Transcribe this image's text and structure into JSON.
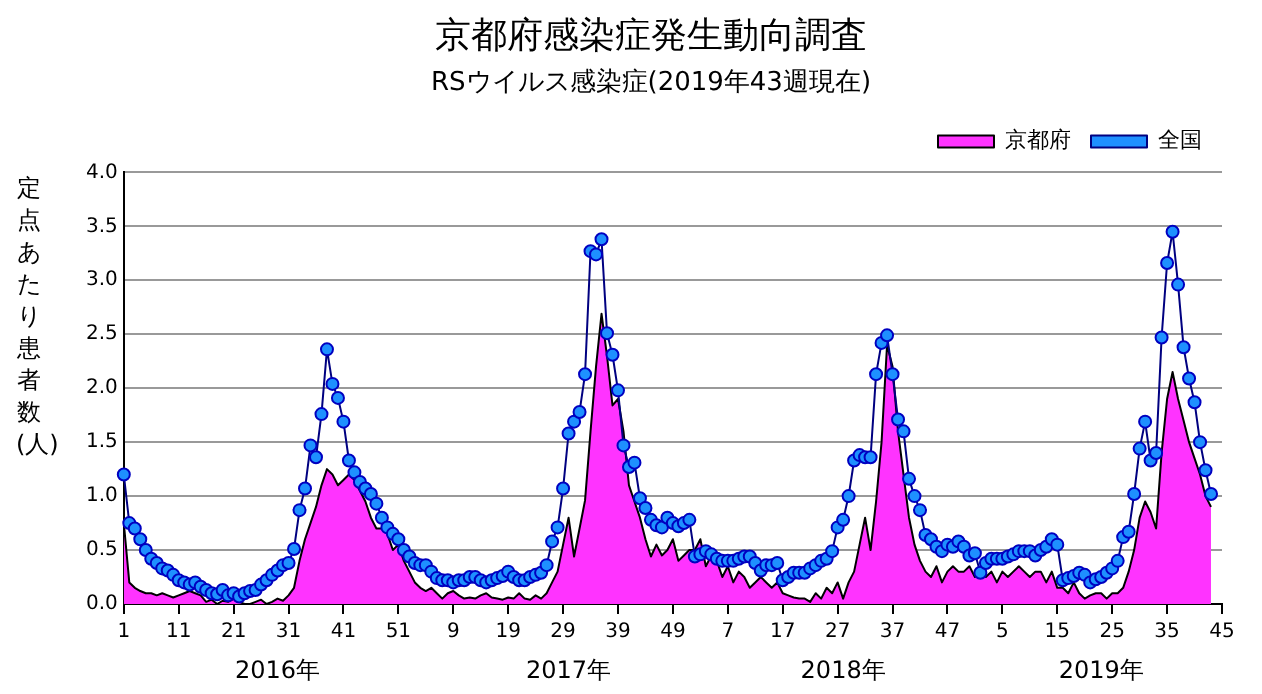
{
  "chart_data": {
    "type": "line",
    "title": "京都府感染症発生動向調査",
    "subtitle": "RSウイルス感染症(2019年43週現在)",
    "ylabel": "定点あたり患者数(人)",
    "categories": [
      "1",
      null,
      null,
      null,
      null,
      null,
      null,
      null,
      null,
      null,
      "11",
      null,
      null,
      null,
      null,
      null,
      null,
      null,
      null,
      null,
      "21",
      null,
      null,
      null,
      null,
      null,
      null,
      null,
      null,
      null,
      "31",
      null,
      null,
      null,
      null,
      null,
      null,
      null,
      null,
      null,
      "41",
      null,
      null,
      null,
      null,
      null,
      null,
      null,
      null,
      null,
      "51",
      null,
      null,
      null,
      null,
      null,
      null,
      null,
      null,
      null,
      "9",
      null,
      null,
      null,
      null,
      null,
      null,
      null,
      null,
      null,
      "19",
      null,
      null,
      null,
      null,
      null,
      null,
      null,
      null,
      null,
      "29",
      null,
      null,
      null,
      null,
      null,
      null,
      null,
      null,
      null,
      "39",
      null,
      null,
      null,
      null,
      null,
      null,
      null,
      null,
      null,
      "49",
      null,
      null,
      null,
      null,
      null,
      null,
      null,
      null,
      null,
      "7",
      null,
      null,
      null,
      null,
      null,
      null,
      null,
      null,
      null,
      "17",
      null,
      null,
      null,
      null,
      null,
      null,
      null,
      null,
      null,
      "27",
      null,
      null,
      null,
      null,
      null,
      null,
      null,
      null,
      null,
      "37",
      null,
      null,
      null,
      null,
      null,
      null,
      null,
      null,
      null,
      "47",
      null,
      null,
      null,
      null,
      null,
      null,
      null,
      null,
      null,
      "5",
      null,
      null,
      null,
      null,
      null,
      null,
      null,
      null,
      null,
      "15",
      null,
      null,
      null,
      null,
      null,
      null,
      null,
      null,
      null,
      "25",
      null,
      null,
      null,
      null,
      null,
      null,
      null,
      null,
      null,
      "35",
      null,
      null,
      null,
      null,
      null,
      null,
      null,
      null,
      null,
      "45"
    ],
    "series": [
      {
        "name": "京都府",
        "type": "area",
        "color": "#ff33ff",
        "values": [
          0.75,
          0.2,
          0.15,
          0.12,
          0.1,
          0.1,
          0.08,
          0.1,
          0.08,
          0.06,
          0.08,
          0.1,
          0.12,
          0.1,
          0.08,
          0.02,
          0.04,
          0.0,
          0.03,
          0.02,
          0.05,
          0.02,
          0.0,
          0.0,
          0.02,
          0.04,
          0.0,
          0.02,
          0.05,
          0.03,
          0.08,
          0.15,
          0.4,
          0.6,
          0.75,
          0.9,
          1.1,
          1.25,
          1.2,
          1.1,
          1.15,
          1.2,
          1.15,
          1.05,
          0.95,
          0.8,
          0.7,
          0.7,
          0.65,
          0.5,
          0.55,
          0.4,
          0.3,
          0.2,
          0.15,
          0.12,
          0.15,
          0.1,
          0.05,
          0.1,
          0.12,
          0.08,
          0.05,
          0.06,
          0.05,
          0.08,
          0.1,
          0.06,
          0.05,
          0.04,
          0.06,
          0.05,
          0.1,
          0.05,
          0.04,
          0.08,
          0.05,
          0.1,
          0.2,
          0.3,
          0.55,
          0.8,
          0.44,
          0.7,
          0.96,
          1.6,
          2.2,
          2.69,
          2.3,
          1.84,
          1.9,
          1.6,
          1.1,
          0.95,
          0.8,
          0.6,
          0.44,
          0.55,
          0.45,
          0.5,
          0.6,
          0.4,
          0.45,
          0.5,
          0.5,
          0.6,
          0.35,
          0.45,
          0.4,
          0.25,
          0.35,
          0.2,
          0.3,
          0.25,
          0.15,
          0.2,
          0.25,
          0.2,
          0.15,
          0.2,
          0.1,
          0.08,
          0.06,
          0.05,
          0.05,
          0.02,
          0.1,
          0.05,
          0.15,
          0.1,
          0.2,
          0.05,
          0.2,
          0.3,
          0.55,
          0.8,
          0.5,
          0.95,
          1.5,
          2.4,
          2.2,
          1.6,
          1.2,
          0.8,
          0.55,
          0.4,
          0.3,
          0.25,
          0.35,
          0.2,
          0.3,
          0.35,
          0.3,
          0.3,
          0.35,
          0.25,
          0.3,
          0.25,
          0.3,
          0.2,
          0.3,
          0.25,
          0.3,
          0.35,
          0.3,
          0.25,
          0.3,
          0.3,
          0.2,
          0.3,
          0.15,
          0.15,
          0.1,
          0.2,
          0.1,
          0.05,
          0.08,
          0.1,
          0.1,
          0.05,
          0.1,
          0.1,
          0.15,
          0.3,
          0.5,
          0.8,
          0.95,
          0.85,
          0.7,
          1.4,
          1.9,
          2.15,
          1.9,
          1.7,
          1.5,
          1.35,
          1.2,
          1.0,
          0.9,
          null,
          null
        ]
      },
      {
        "name": "全国",
        "type": "line",
        "color": "#1e90ff",
        "marker": "circle",
        "values": [
          1.2,
          0.75,
          0.7,
          0.6,
          0.5,
          0.42,
          0.38,
          0.33,
          0.31,
          0.27,
          0.22,
          0.2,
          0.18,
          0.2,
          0.16,
          0.13,
          0.1,
          0.09,
          0.13,
          0.08,
          0.1,
          0.07,
          0.1,
          0.12,
          0.13,
          0.18,
          0.22,
          0.27,
          0.31,
          0.36,
          0.38,
          0.51,
          0.87,
          1.07,
          1.47,
          1.36,
          1.76,
          2.36,
          2.04,
          1.91,
          1.69,
          1.33,
          1.22,
          1.13,
          1.07,
          1.02,
          0.93,
          0.8,
          0.71,
          0.65,
          0.6,
          0.5,
          0.44,
          0.38,
          0.36,
          0.36,
          0.3,
          0.24,
          0.22,
          0.22,
          0.2,
          0.22,
          0.22,
          0.25,
          0.25,
          0.22,
          0.2,
          0.22,
          0.24,
          0.26,
          0.3,
          0.25,
          0.22,
          0.22,
          0.25,
          0.27,
          0.29,
          0.36,
          0.58,
          0.71,
          1.07,
          1.58,
          1.69,
          1.78,
          2.13,
          3.27,
          3.24,
          3.38,
          2.51,
          2.31,
          1.98,
          1.47,
          1.27,
          1.31,
          0.98,
          0.89,
          0.78,
          0.73,
          0.71,
          0.8,
          0.75,
          0.72,
          0.75,
          0.78,
          0.44,
          0.46,
          0.49,
          0.46,
          0.42,
          0.4,
          0.4,
          0.4,
          0.42,
          0.44,
          0.44,
          0.38,
          0.31,
          0.36,
          0.36,
          0.38,
          0.22,
          0.25,
          0.29,
          0.29,
          0.29,
          0.33,
          0.36,
          0.4,
          0.42,
          0.49,
          0.71,
          0.78,
          1.0,
          1.33,
          1.38,
          1.36,
          1.36,
          2.13,
          2.42,
          2.49,
          2.13,
          1.71,
          1.6,
          1.16,
          1.0,
          0.87,
          0.64,
          0.6,
          0.53,
          0.49,
          0.55,
          0.53,
          0.58,
          0.53,
          0.45,
          0.47,
          0.29,
          0.38,
          0.42,
          0.42,
          0.42,
          0.44,
          0.46,
          0.49,
          0.49,
          0.49,
          0.45,
          0.5,
          0.53,
          0.6,
          0.55,
          0.22,
          0.24,
          0.26,
          0.29,
          0.27,
          0.2,
          0.23,
          0.25,
          0.29,
          0.33,
          0.4,
          0.62,
          0.67,
          1.02,
          1.44,
          1.69,
          1.33,
          1.4,
          2.47,
          3.16,
          3.45,
          2.96,
          2.38,
          2.09,
          1.87,
          1.5,
          1.24,
          1.02,
          null,
          null
        ]
      }
    ],
    "ylim": [
      0,
      4
    ],
    "yticks": [
      {
        "value": 0,
        "label": "0.0"
      },
      {
        "value": 0.5,
        "label": "0.5"
      },
      {
        "value": 1,
        "label": "1.0"
      },
      {
        "value": 1.5,
        "label": "1.5"
      },
      {
        "value": 2,
        "label": "2.0"
      },
      {
        "value": 2.5,
        "label": "2.5"
      },
      {
        "value": 3,
        "label": "3.0"
      },
      {
        "value": 3.5,
        "label": "3.5"
      },
      {
        "value": 4,
        "label": "4.0"
      }
    ],
    "grid": "y",
    "legend": "top right",
    "annotations": [
      "2016年",
      "2017年",
      "2018年",
      "2019年"
    ]
  }
}
